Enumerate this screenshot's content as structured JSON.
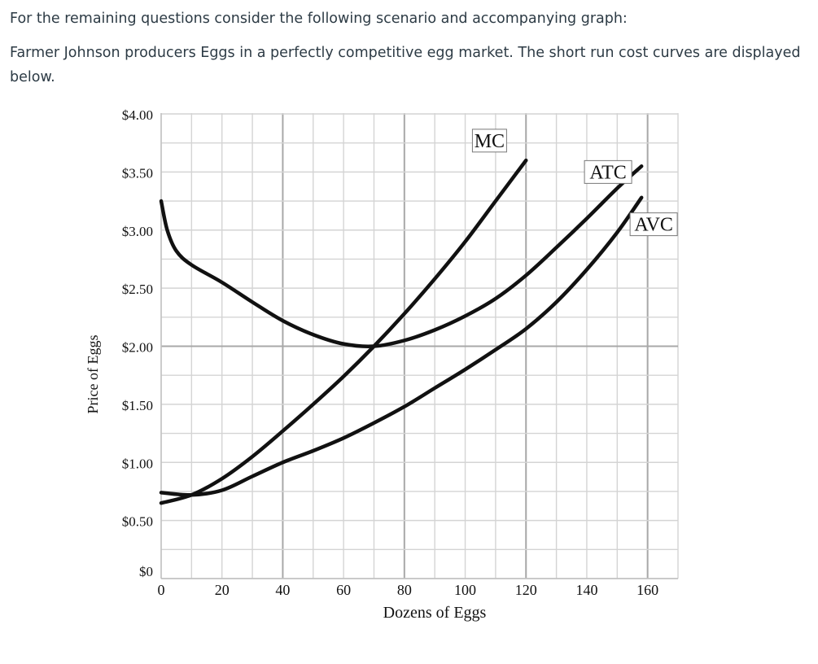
{
  "intro": {
    "line1": "For the remaining questions consider the following scenario and accompanying graph:",
    "line2": "Farmer Johnson producers Eggs in a perfectly competitive egg market. The short run cost curves are displayed below."
  },
  "chart_data": {
    "type": "line",
    "xlabel": "Dozens of Eggs",
    "ylabel": "Price of Eggs",
    "xlim": [
      0,
      170
    ],
    "ylim": [
      0,
      4
    ],
    "x_ticks": [
      "0",
      "20",
      "40",
      "60",
      "80",
      "100",
      "120",
      "140",
      "160"
    ],
    "y_ticks": [
      "$0",
      "$0.50",
      "$1.00",
      "$1.50",
      "$2.00",
      "$2.50",
      "$3.00",
      "$3.50",
      "$4.00"
    ],
    "grid": true,
    "series": [
      {
        "name": "MC",
        "x": [
          0,
          10,
          20,
          30,
          40,
          50,
          60,
          70,
          80,
          90,
          100,
          110,
          120
        ],
        "y": [
          0.65,
          0.72,
          0.86,
          1.05,
          1.27,
          1.5,
          1.74,
          2.0,
          2.28,
          2.58,
          2.9,
          3.25,
          3.6
        ]
      },
      {
        "name": "ATC",
        "x": [
          0,
          2,
          5,
          10,
          20,
          30,
          40,
          50,
          60,
          70,
          80,
          90,
          100,
          110,
          120,
          130,
          140,
          150,
          158
        ],
        "y": [
          3.25,
          3.0,
          2.82,
          2.7,
          2.55,
          2.38,
          2.22,
          2.1,
          2.02,
          2.0,
          2.05,
          2.14,
          2.26,
          2.41,
          2.61,
          2.85,
          3.1,
          3.36,
          3.55
        ]
      },
      {
        "name": "AVC",
        "x": [
          0,
          10,
          20,
          30,
          40,
          50,
          60,
          70,
          80,
          90,
          100,
          110,
          120,
          130,
          140,
          150,
          158
        ],
        "y": [
          0.74,
          0.72,
          0.76,
          0.88,
          1.0,
          1.1,
          1.21,
          1.34,
          1.48,
          1.64,
          1.8,
          1.97,
          2.15,
          2.38,
          2.66,
          2.98,
          3.28
        ]
      }
    ],
    "annotations": [
      {
        "text": "MC",
        "x": 108,
        "y": 3.77
      },
      {
        "text": "ATC",
        "x": 147,
        "y": 3.5
      },
      {
        "text": "AVC",
        "x": 162,
        "y": 3.05
      }
    ]
  }
}
